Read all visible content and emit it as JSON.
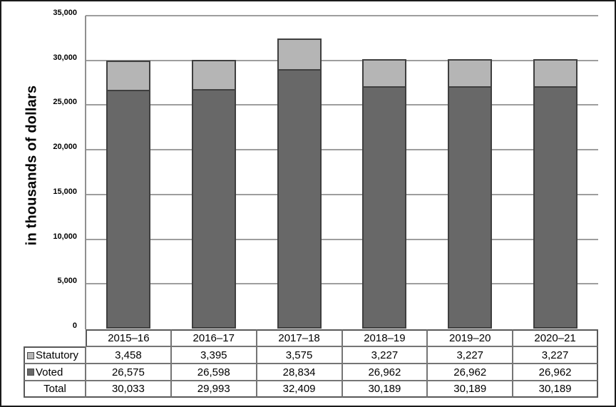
{
  "figure": {
    "background": "#ffffff",
    "border_color": "#1a1a1a"
  },
  "chart_data": {
    "type": "bar",
    "stacked": true,
    "title": "",
    "xlabel": "",
    "ylabel": "in thousands of dollars",
    "ylim": [
      0,
      35000
    ],
    "ytick_interval": 5000,
    "ytick_labels": [
      "0",
      "5,000",
      "10,000",
      "15,000",
      "20,000",
      "25,000",
      "30,000",
      "35,000"
    ],
    "grid": true,
    "legend_position": "table-left-column",
    "categories": [
      "2015–16",
      "2016–17",
      "2017–18",
      "2018–19",
      "2019–20",
      "2020–21"
    ],
    "series": [
      {
        "name": "Statutory",
        "position": "top",
        "color": "#b5b5b5",
        "border_color": "#3f3f3f",
        "values": [
          3458,
          3395,
          3575,
          3227,
          3227,
          3227
        ]
      },
      {
        "name": "Voted",
        "position": "bottom",
        "color": "#686868",
        "border_color": "#3f3f3f",
        "values": [
          26575,
          26598,
          28834,
          26962,
          26962,
          26962
        ]
      }
    ],
    "totals": {
      "label": "Total",
      "values": [
        30033,
        29993,
        32409,
        30189,
        30189,
        30189
      ]
    }
  },
  "colors": {
    "gridline": "#9e9e9e",
    "axis_line": "#8f8f8f",
    "table_border": "#757575",
    "table_border_outer": "#595959",
    "text": "#000000"
  }
}
